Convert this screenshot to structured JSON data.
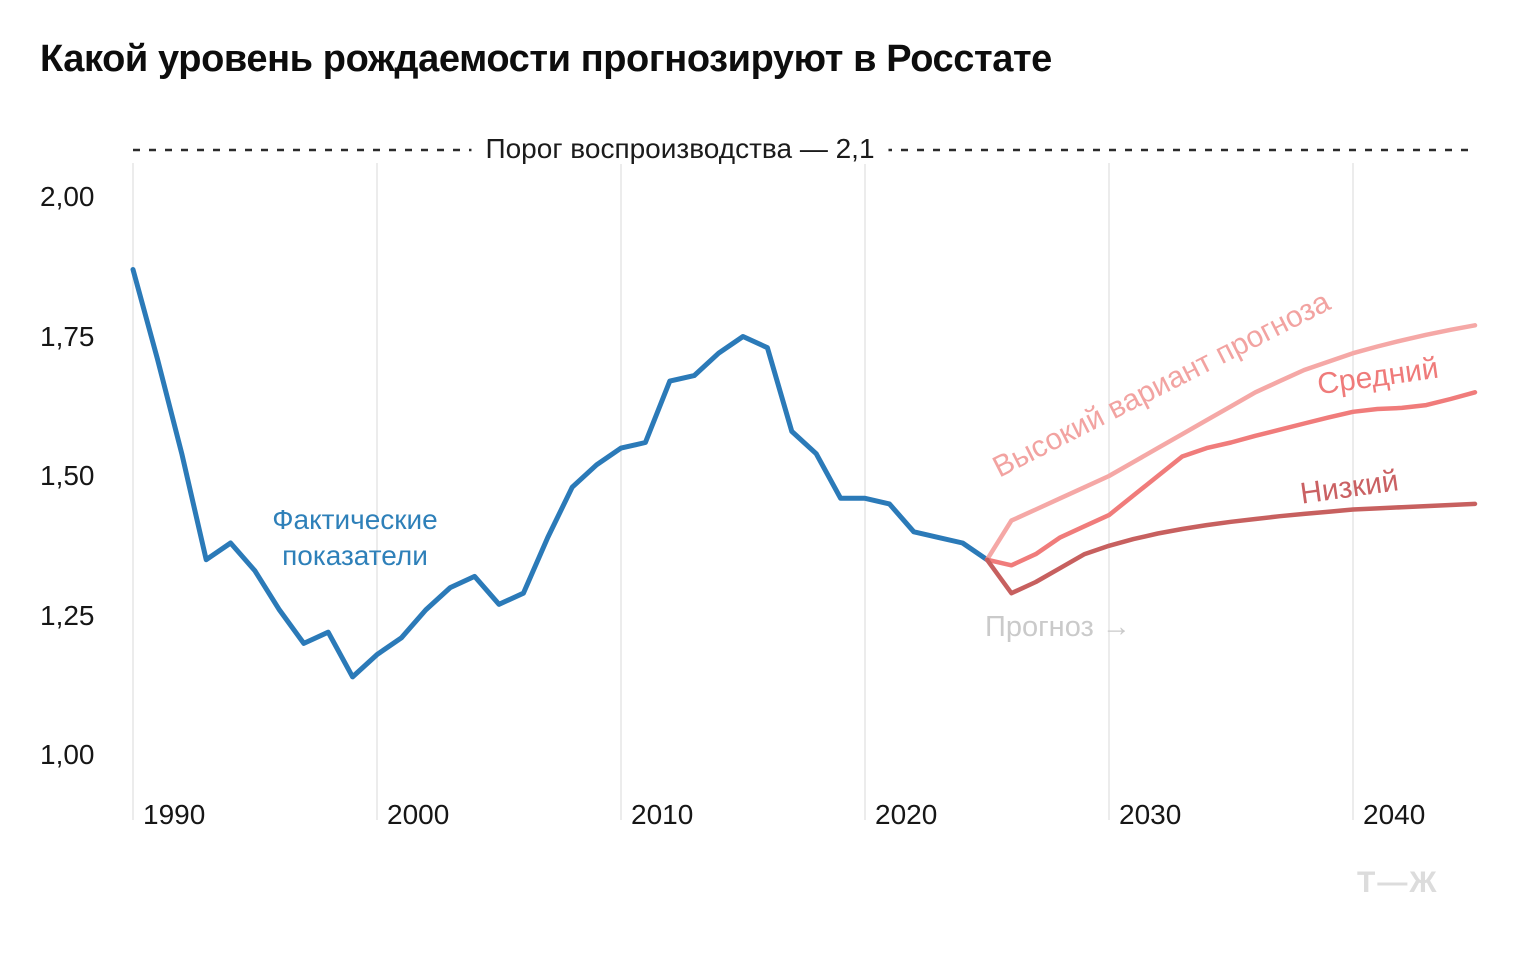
{
  "page": {
    "background": "#ffffff",
    "brand_logo": "Т—Ж"
  },
  "chart_data": {
    "type": "line",
    "title": "Какой уровень рождаемости прогнозируют в Росстате",
    "threshold_line": {
      "label": "Порог воспроизводства — 2,1",
      "value": 2.1,
      "style": "dashed",
      "color": "#2b2b2b"
    },
    "x_axis": {
      "tick_labels": [
        "1990",
        "2000",
        "2010",
        "2020",
        "2030",
        "2040"
      ],
      "tick_values": [
        1990,
        2000,
        2010,
        2020,
        2030,
        2040
      ],
      "range": [
        1990,
        2045
      ]
    },
    "y_axis": {
      "tick_labels": [
        "2,00",
        "1,75",
        "1,50",
        "1,25",
        "1,00"
      ],
      "tick_values": [
        2.0,
        1.75,
        1.5,
        1.25,
        1.0
      ],
      "visible_range": [
        1.0,
        2.1
      ],
      "decimal_separator": "comma"
    },
    "grid": {
      "vertical": true,
      "horizontal": false,
      "color": "#ececec"
    },
    "legend_position": "inline-labels",
    "series": [
      {
        "id": "actual",
        "name": "Фактические показатели",
        "role": "actual",
        "color": "#2b7ab8",
        "label_color": "#2e80b9",
        "width": 5,
        "years": [
          1990,
          1991,
          1992,
          1993,
          1994,
          1995,
          1996,
          1997,
          1998,
          1999,
          2000,
          2001,
          2002,
          2003,
          2004,
          2005,
          2006,
          2007,
          2008,
          2009,
          2010,
          2011,
          2012,
          2013,
          2014,
          2015,
          2016,
          2017,
          2018,
          2019,
          2020,
          2021,
          2022,
          2023,
          2024,
          2025
        ],
        "values": [
          1.87,
          1.71,
          1.54,
          1.35,
          1.38,
          1.33,
          1.26,
          1.2,
          1.22,
          1.14,
          1.18,
          1.21,
          1.26,
          1.3,
          1.32,
          1.27,
          1.29,
          1.39,
          1.48,
          1.52,
          1.55,
          1.56,
          1.67,
          1.68,
          1.72,
          1.75,
          1.73,
          1.58,
          1.54,
          1.46,
          1.46,
          1.45,
          1.4,
          1.39,
          1.38,
          1.35
        ]
      },
      {
        "id": "high",
        "name": "Высокий вариант прогноза",
        "role": "forecast-high",
        "color": "#f5a8a6",
        "label_color": "#f2a3a1",
        "width": 4.5,
        "years": [
          2025,
          2026,
          2027,
          2028,
          2029,
          2030,
          2031,
          2032,
          2033,
          2034,
          2035,
          2036,
          2037,
          2038,
          2039,
          2040,
          2041,
          2042,
          2043,
          2044,
          2045
        ],
        "values": [
          1.35,
          1.42,
          1.44,
          1.46,
          1.48,
          1.5,
          1.525,
          1.55,
          1.575,
          1.6,
          1.625,
          1.65,
          1.67,
          1.69,
          1.705,
          1.72,
          1.732,
          1.743,
          1.753,
          1.762,
          1.77
        ]
      },
      {
        "id": "medium",
        "name": "Средний",
        "role": "forecast-medium",
        "color": "#f07c7b",
        "label_color": "#ef7b7a",
        "width": 4.5,
        "years": [
          2025,
          2026,
          2027,
          2028,
          2029,
          2030,
          2031,
          2032,
          2033,
          2034,
          2035,
          2036,
          2037,
          2038,
          2039,
          2040,
          2041,
          2042,
          2043,
          2044,
          2045
        ],
        "values": [
          1.35,
          1.34,
          1.36,
          1.39,
          1.41,
          1.43,
          1.465,
          1.5,
          1.535,
          1.55,
          1.56,
          1.572,
          1.583,
          1.594,
          1.605,
          1.615,
          1.62,
          1.622,
          1.627,
          1.638,
          1.65
        ]
      },
      {
        "id": "low",
        "name": "Низкий",
        "role": "forecast-low",
        "color": "#c7605f",
        "label_color": "#ca6163",
        "width": 4.5,
        "years": [
          2025,
          2026,
          2027,
          2028,
          2029,
          2030,
          2031,
          2032,
          2033,
          2034,
          2035,
          2036,
          2037,
          2038,
          2039,
          2040,
          2041,
          2042,
          2043,
          2044,
          2045
        ],
        "values": [
          1.35,
          1.29,
          1.31,
          1.335,
          1.36,
          1.375,
          1.387,
          1.397,
          1.405,
          1.412,
          1.418,
          1.423,
          1.428,
          1.432,
          1.436,
          1.44,
          1.442,
          1.444,
          1.446,
          1.448,
          1.45
        ]
      }
    ],
    "annotations": [
      {
        "id": "forecast-note",
        "text": "Прогноз →",
        "color": "#cacaca",
        "near_year": 2025,
        "near_value": 1.22
      }
    ]
  }
}
